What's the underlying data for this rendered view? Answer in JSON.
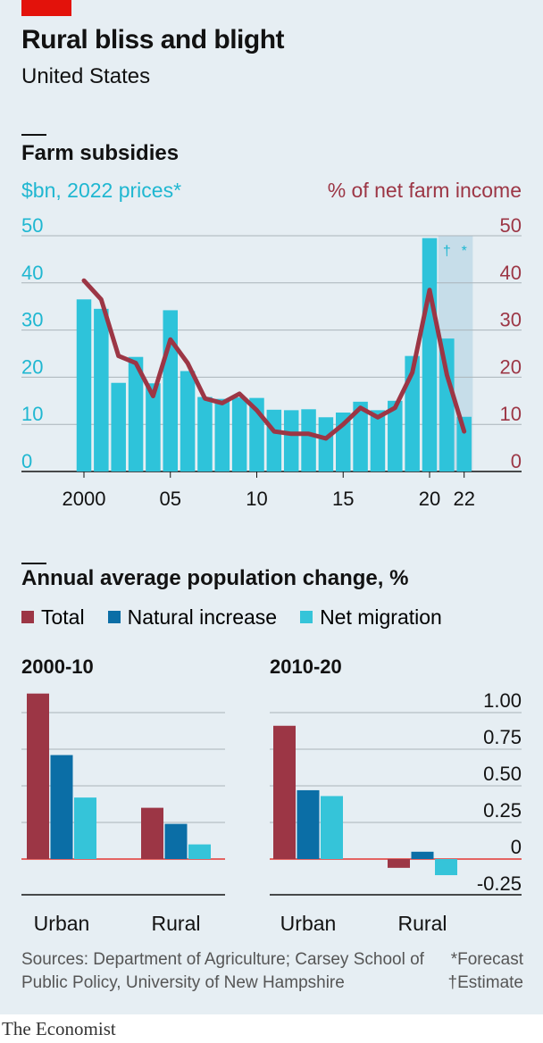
{
  "header": {
    "title": "Rural bliss and blight",
    "subtitle": "United States"
  },
  "farm": {
    "section_title": "Farm subsidies",
    "left_axis_label": "$bn, 2022 prices*",
    "right_axis_label": "% of net farm income",
    "forecast_marker": "*",
    "estimate_marker": "†",
    "colors": {
      "bars": "#2ec3da",
      "line": "#9c3645",
      "left_axis": "#1fb7d1",
      "right_axis": "#9c3645",
      "shade": "#c6dde9"
    }
  },
  "population": {
    "section_title": "Annual average population change, %",
    "legend": [
      {
        "label": "Total",
        "color": "#9c3645"
      },
      {
        "label": "Natural increase",
        "color": "#0b6ea6"
      },
      {
        "label": "Net migration",
        "color": "#35c4d9"
      }
    ],
    "panels": [
      "2000-10",
      "2010-20"
    ]
  },
  "footer": {
    "sources": "Sources: Department of Agriculture; Carsey School of Public Policy, University of New Hampshire",
    "note_forecast": "*Forecast",
    "note_estimate": "†Estimate",
    "brand": "The Economist"
  },
  "chart_data": [
    {
      "type": "bar",
      "title": "Farm subsidies",
      "ylabel": "$bn, 2022 prices*",
      "ylim": [
        0,
        50
      ],
      "y_ticks": [
        0,
        10,
        20,
        30,
        40,
        50
      ],
      "x_tick_labels": [
        {
          "year": 2000,
          "label": "2000"
        },
        {
          "year": 2005,
          "label": "05"
        },
        {
          "year": 2010,
          "label": "10"
        },
        {
          "year": 2015,
          "label": "15"
        },
        {
          "year": 2020,
          "label": "20"
        },
        {
          "year": 2022,
          "label": "22"
        }
      ],
      "x": [
        2000,
        2001,
        2002,
        2003,
        2004,
        2005,
        2006,
        2007,
        2008,
        2009,
        2010,
        2011,
        2012,
        2013,
        2014,
        2015,
        2016,
        2017,
        2018,
        2019,
        2020,
        2021,
        2022
      ],
      "series": [
        {
          "values": [
            36.5,
            34.5,
            18.8,
            24.3,
            18.7,
            34.2,
            21.3,
            15.8,
            15.4,
            15.7,
            15.6,
            13.1,
            13.0,
            13.2,
            11.5,
            12.5,
            14.8,
            13.0,
            15.0,
            24.5,
            49.5,
            28.2,
            11.6
          ]
        }
      ],
      "estimate_years": [
        2021
      ],
      "forecast_years": [
        2022
      ],
      "grid": true
    },
    {
      "type": "line",
      "title": "Farm subsidies",
      "ylabel": "% of net farm income",
      "ylim": [
        0,
        50
      ],
      "y_ticks": [
        0,
        10,
        20,
        30,
        40,
        50
      ],
      "x": [
        2000,
        2001,
        2002,
        2003,
        2004,
        2005,
        2006,
        2007,
        2008,
        2009,
        2010,
        2011,
        2012,
        2013,
        2014,
        2015,
        2016,
        2017,
        2018,
        2019,
        2020,
        2021,
        2022
      ],
      "series": [
        {
          "values": [
            40.5,
            36.5,
            24.5,
            23.0,
            16.0,
            28.0,
            23.0,
            15.5,
            14.5,
            16.5,
            13.0,
            8.5,
            8.0,
            8.0,
            7.0,
            10.0,
            13.5,
            11.5,
            13.5,
            21.0,
            38.5,
            20.5,
            8.5
          ]
        }
      ]
    },
    {
      "type": "bar",
      "title": "2000-10",
      "categories": [
        "Urban",
        "Rural"
      ],
      "series": [
        {
          "name": "Total",
          "values": [
            1.13,
            0.35
          ]
        },
        {
          "name": "Natural increase",
          "values": [
            0.71,
            0.24
          ]
        },
        {
          "name": "Net migration",
          "values": [
            0.42,
            0.1
          ]
        }
      ],
      "ylim": [
        -0.25,
        1.0
      ],
      "grid": true
    },
    {
      "type": "bar",
      "title": "2010-20",
      "categories": [
        "Urban",
        "Rural"
      ],
      "series": [
        {
          "name": "Total",
          "values": [
            0.91,
            -0.06
          ]
        },
        {
          "name": "Natural increase",
          "values": [
            0.47,
            0.05
          ]
        },
        {
          "name": "Net migration",
          "values": [
            0.43,
            -0.11
          ]
        }
      ],
      "y_ticks": [
        "1.00",
        "0.75",
        "0.50",
        "0.25",
        "0",
        "-0.25"
      ],
      "ylim": [
        -0.25,
        1.0
      ],
      "grid": true
    }
  ]
}
